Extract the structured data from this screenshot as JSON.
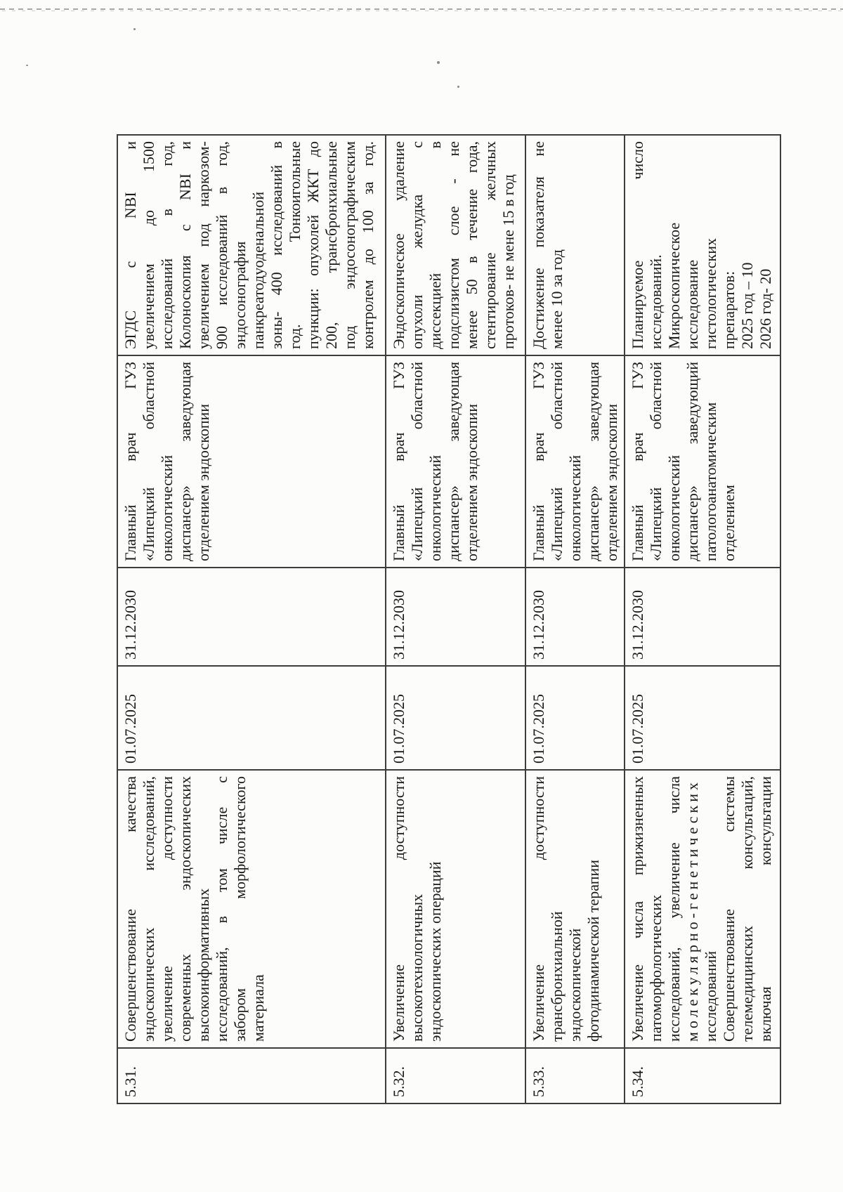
{
  "scan": {
    "paper_color": "#fcfcfb",
    "ink_color": "#1a1a1a",
    "border_color": "#3d3d3d",
    "dash_artifact_color": "#9e9e9e"
  },
  "table": {
    "rows": [
      {
        "num": "5.31.",
        "activity": {
          "lines": [
            {
              "t": "Совершенствование качества",
              "j": true
            },
            {
              "t": "эндоскопических исследований,",
              "j": true
            },
            {
              "t": "увеличение доступности",
              "j": true
            },
            {
              "t": "современных эндоскопических",
              "j": true
            },
            {
              "t": "высокоинформативных",
              "j": false
            },
            {
              "t": "исследований, в том числе с",
              "j": true
            },
            {
              "t": "забором морфологического",
              "j": true
            },
            {
              "t": "материала",
              "j": false
            }
          ]
        },
        "start_date": "01.07.2025",
        "end_date": "31.12.2030",
        "responsible": {
          "lines": [
            {
              "t": "Главный врач ГУЗ",
              "j": true
            },
            {
              "t": "«Липецкий областной",
              "j": true
            },
            {
              "t": "онкологический",
              "j": false
            },
            {
              "t": "диспансер» заведующая",
              "j": true
            },
            {
              "t": "отделением эндоскопии",
              "j": false
            }
          ]
        },
        "result": {
          "lines": [
            {
              "t": "ЭГДС с NBI и",
              "j": true
            },
            {
              "t": "увеличением до 1500",
              "j": true
            },
            {
              "t": "исследований в год,",
              "j": true
            },
            {
              "t": "Колоноскопия с NBI и",
              "j": true
            },
            {
              "t": "увеличением под наркозом-",
              "j": true
            },
            {
              "t": "900 исследований в год,",
              "j": true
            },
            {
              "t": "эндосонография",
              "j": false
            },
            {
              "t": "панкреатодуоденальной",
              "j": false
            },
            {
              "t": "зоны- 400 исследований в",
              "j": true
            },
            {
              "t": "год. Тонкоигольные",
              "j": true
            },
            {
              "t": "пункции: опухолей ЖКТ до",
              "j": true
            },
            {
              "t": "200, трансбронхиальные",
              "j": true
            },
            {
              "t": "под эндосонографическим",
              "j": true
            },
            {
              "t": "контролем до 100 за год.",
              "j": true
            }
          ]
        }
      },
      {
        "num": "5.32.",
        "activity": {
          "lines": [
            {
              "t": "Увеличение доступности",
              "j": true
            },
            {
              "t": "высокотехнологичных",
              "j": false
            },
            {
              "t": "эндоскопических операций",
              "j": false
            }
          ]
        },
        "start_date": "01.07.2025",
        "end_date": "31.12.2030",
        "responsible": {
          "lines": [
            {
              "t": "Главный врач ГУЗ",
              "j": true
            },
            {
              "t": "«Липецкий областной",
              "j": true
            },
            {
              "t": "онкологический",
              "j": false
            },
            {
              "t": "диспансер» заведующая",
              "j": true
            },
            {
              "t": "отделением эндоскопии",
              "j": false
            }
          ]
        },
        "result": {
          "lines": [
            {
              "t": "Эндоскопическое удаление",
              "j": true
            },
            {
              "t": "опухоли желудка с",
              "j": true
            },
            {
              "t": "диссекцией в",
              "j": true
            },
            {
              "t": "подслизистом слое - не",
              "j": true
            },
            {
              "t": "менее 50 в течение года,",
              "j": true
            },
            {
              "t": "стентирование желчных",
              "j": true
            },
            {
              "t": "протоков- не мене 15 в год",
              "j": false
            }
          ]
        }
      },
      {
        "num": "5.33.",
        "activity": {
          "lines": [
            {
              "t": "Увеличение доступности",
              "j": true
            },
            {
              "t": "трансбронхиальной",
              "j": false
            },
            {
              "t": "эндоскопической",
              "j": false
            },
            {
              "t": "фотодинамической терапии",
              "j": false
            }
          ]
        },
        "start_date": "01.07.2025",
        "end_date": "31.12.2030",
        "responsible": {
          "lines": [
            {
              "t": "Главный врач ГУЗ",
              "j": true
            },
            {
              "t": "«Липецкий областной",
              "j": true
            },
            {
              "t": "онкологический",
              "j": false
            },
            {
              "t": "диспансер» заведующая",
              "j": true
            },
            {
              "t": "отделением эндоскопии",
              "j": false
            }
          ]
        },
        "result": {
          "lines": [
            {
              "t": "Достижение показателя не",
              "j": true
            },
            {
              "t": "менее 10 за год",
              "j": false
            }
          ]
        }
      },
      {
        "num": "5.34.",
        "activity": {
          "lines": [
            {
              "t": "Увеличение числа прижизненных",
              "j": true
            },
            {
              "t": "патоморфологических",
              "j": false
            },
            {
              "t": "исследований, увеличение числа",
              "j": true
            },
            {
              "t": "молекулярно-генетических",
              "j": false,
              "sp": true
            },
            {
              "t": "исследований",
              "j": false
            },
            {
              "t": "Совершенствование системы",
              "j": true
            },
            {
              "t": "телемедицинских консультаций,",
              "j": true
            },
            {
              "t": "включая консультации",
              "j": true
            }
          ]
        },
        "start_date": "01.07.2025",
        "end_date": "31.12.2030",
        "responsible": {
          "lines": [
            {
              "t": "Главный врач ГУЗ",
              "j": true
            },
            {
              "t": "«Липецкий областной",
              "j": true
            },
            {
              "t": "онкологический",
              "j": false
            },
            {
              "t": "диспансер» заведующий",
              "j": true
            },
            {
              "t": "патологоанатомическим",
              "j": false
            },
            {
              "t": "отделением",
              "j": false
            }
          ]
        },
        "result": {
          "lines": [
            {
              "t": "Планируемое число",
              "j": true
            },
            {
              "t": "исследований.",
              "j": false
            },
            {
              "t": "Микроскопическое",
              "j": false
            },
            {
              "t": "исследование",
              "j": false
            },
            {
              "t": "гистологических",
              "j": false
            },
            {
              "t": "препаратов:",
              "j": false
            },
            {
              "t": "2025 год – 10",
              "j": false
            },
            {
              "t": "2026 год- 20",
              "j": false
            }
          ]
        }
      }
    ]
  }
}
